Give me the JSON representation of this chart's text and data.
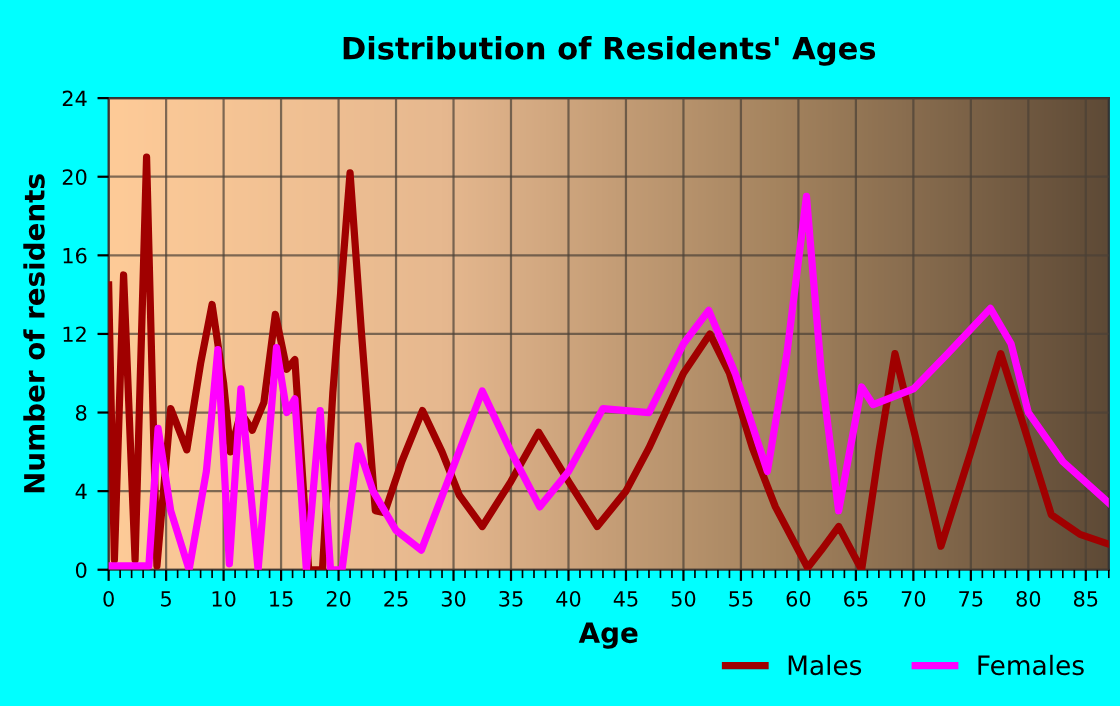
{
  "chart_data": {
    "type": "line",
    "title": "Distribution of Residents' Ages",
    "xlabel": "Age",
    "ylabel": "Number of residents",
    "xlim": [
      0,
      87
    ],
    "xticks": [
      0,
      5,
      10,
      15,
      20,
      25,
      30,
      35,
      40,
      45,
      50,
      55,
      60,
      65,
      70,
      75,
      80,
      85
    ],
    "ylim": [
      0,
      24
    ],
    "yticks": [
      0,
      4,
      8,
      12,
      16,
      20,
      24
    ],
    "grid": true,
    "legend": "bottom right",
    "marker": "none",
    "line_style": "solid",
    "series": [
      {
        "name": "Males",
        "color": "#a00000",
        "x": [
          0,
          0.5,
          1.3,
          2.3,
          3.3,
          4.2,
          5.4,
          6.8,
          8,
          9,
          10,
          10.6,
          11.5,
          12.5,
          13.5,
          14.5,
          15.5,
          16.2,
          17.4,
          18.6,
          19.5,
          21,
          22,
          23.2,
          24,
          25.5,
          27.3,
          29,
          30.5,
          32.5,
          35,
          37.4,
          40,
          42.5,
          45,
          47,
          50,
          52.3,
          54,
          56,
          58,
          60.8,
          62,
          63.5,
          65.5,
          67,
          68.4,
          70.5,
          72.4,
          75,
          77.6,
          79.5,
          82,
          84.5,
          87
        ],
        "values": [
          14.5,
          0.5,
          15,
          0.5,
          21,
          0.2,
          8.2,
          6.1,
          10.5,
          13.5,
          9.5,
          6,
          8,
          7.1,
          8.5,
          13,
          10.2,
          10.7,
          0,
          0,
          9,
          20.2,
          12,
          3,
          2.9,
          5.5,
          8.1,
          6,
          3.8,
          2.2,
          4.5,
          7,
          4.5,
          2.2,
          4,
          6.2,
          10,
          12,
          10,
          6.2,
          3.2,
          0.1,
          1,
          2.2,
          0,
          6,
          11,
          6,
          1.2,
          6,
          11,
          7.5,
          2.8,
          1.8,
          1.3
        ]
      },
      {
        "name": "Females",
        "color": "#ff00ff",
        "x": [
          0,
          3.5,
          4.3,
          5.4,
          7,
          8.5,
          9.5,
          10.5,
          11.5,
          13,
          14.6,
          15.5,
          16.2,
          17.2,
          18.4,
          19.3,
          20.3,
          21.7,
          23,
          25,
          27.2,
          29.5,
          32.5,
          35,
          37.5,
          40,
          43,
          47,
          50,
          52.2,
          54.5,
          57.3,
          59,
          60.7,
          62,
          63.5,
          65.5,
          66.5,
          70,
          73,
          76.7,
          78.5,
          80,
          83,
          87
        ],
        "values": [
          0.2,
          0.2,
          7.2,
          3,
          0,
          5,
          11.2,
          0.3,
          9.2,
          0,
          11.3,
          8,
          8.7,
          0,
          8.1,
          0,
          0,
          6.3,
          4,
          2,
          1,
          4.5,
          9.1,
          6,
          3.2,
          5,
          8.2,
          8,
          11.5,
          13.2,
          10,
          5,
          11,
          19,
          10,
          3,
          9.3,
          8.4,
          9.2,
          11,
          13.3,
          11.5,
          8,
          5.5,
          3.4
        ]
      }
    ]
  }
}
